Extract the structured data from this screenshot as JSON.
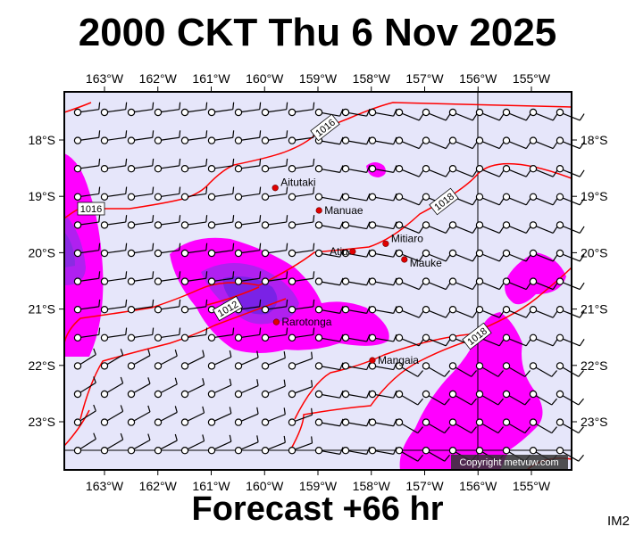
{
  "title": "2000 CKT Thu 6 Nov 2025",
  "footer": "Forecast +66 hr",
  "corner_label": "IM2",
  "copyright": "Copyright metvuw.com",
  "colors": {
    "background": "#e6e6fa",
    "heavy": "#ff00ff",
    "heavier": "#b020f0",
    "heaviest": "#7a22e6",
    "isobar": "#ff0000",
    "island": "#e00000"
  },
  "lon_ticks": [
    "163°W",
    "162°W",
    "161°W",
    "160°W",
    "159°W",
    "158°W",
    "157°W",
    "156°W",
    "155°W"
  ],
  "lat_ticks": [
    "18°S",
    "19°S",
    "20°S",
    "21°S",
    "22°S",
    "23°S"
  ],
  "isobar_labels": [
    "1016",
    "1016",
    "1018",
    "1012",
    "1018"
  ],
  "islands": [
    {
      "name": "Aitutaki",
      "lon": -159.8,
      "lat": -18.85
    },
    {
      "name": "Manuae",
      "lon": -158.98,
      "lat": -19.25
    },
    {
      "name": "Atiu",
      "lon": -158.35,
      "lat": -19.98
    },
    {
      "name": "Mitiaro",
      "lon": -157.73,
      "lat": -19.84
    },
    {
      "name": "Mauke",
      "lon": -157.38,
      "lat": -20.12
    },
    {
      "name": "Rarotonga",
      "lon": -159.78,
      "lat": -21.23
    },
    {
      "name": "Mangaia",
      "lon": -157.98,
      "lat": -21.91
    }
  ]
}
